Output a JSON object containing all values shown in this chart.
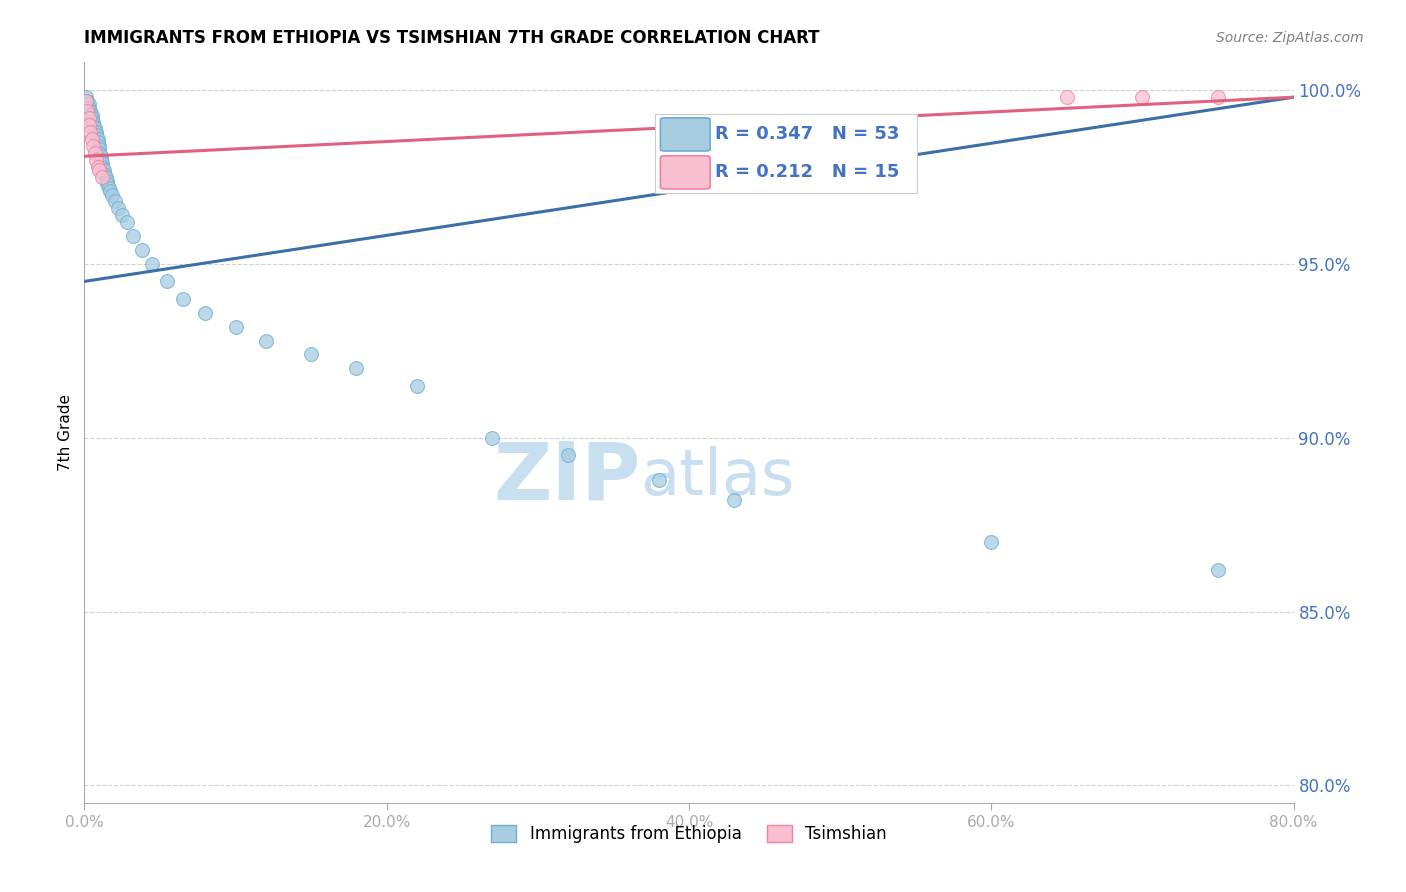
{
  "title": "IMMIGRANTS FROM ETHIOPIA VS TSIMSHIAN 7TH GRADE CORRELATION CHART",
  "ylabel": "7th Grade",
  "source_text": "Source: ZipAtlas.com",
  "xlim": [
    0.0,
    0.8
  ],
  "ylim": [
    0.795,
    1.008
  ],
  "xticks": [
    0.0,
    0.2,
    0.4,
    0.6,
    0.8
  ],
  "xticklabels": [
    "0.0%",
    "20.0%",
    "40.0%",
    "60.0%",
    "80.0%"
  ],
  "yticks": [
    0.8,
    0.85,
    0.9,
    0.95,
    1.0
  ],
  "yticklabels": [
    "80.0%",
    "85.0%",
    "90.0%",
    "95.0%",
    "100.0%"
  ],
  "ethiopia_color": "#a8cce0",
  "ethiopia_edge_color": "#6aaed6",
  "tsimshian_color": "#f9c0d0",
  "tsimshian_edge_color": "#f080a0",
  "ethiopia_line_color": "#3a6faa",
  "tsimshian_line_color": "#e06080",
  "legend_box_ethiopia": "#a8cce0",
  "legend_box_tsimshian": "#f9c0d0",
  "R_ethiopia": 0.347,
  "N_ethiopia": 53,
  "R_tsimshian": 0.212,
  "N_tsimshian": 15,
  "watermark_zip": "ZIP",
  "watermark_atlas": "atlas",
  "watermark_color": "#c8dff0",
  "ethiopia_x": [
    0.001,
    0.002,
    0.002,
    0.003,
    0.003,
    0.004,
    0.004,
    0.005,
    0.005,
    0.006,
    0.006,
    0.007,
    0.007,
    0.008,
    0.008,
    0.009,
    0.009,
    0.01,
    0.01,
    0.01,
    0.011,
    0.011,
    0.012,
    0.012,
    0.013,
    0.013,
    0.014,
    0.015,
    0.015,
    0.016,
    0.017,
    0.018,
    0.02,
    0.022,
    0.025,
    0.028,
    0.032,
    0.038,
    0.045,
    0.055,
    0.065,
    0.08,
    0.1,
    0.12,
    0.15,
    0.18,
    0.22,
    0.27,
    0.32,
    0.38,
    0.43,
    0.6,
    0.75
  ],
  "ethiopia_y": [
    0.998,
    0.997,
    0.996,
    0.996,
    0.995,
    0.994,
    0.993,
    0.993,
    0.992,
    0.991,
    0.99,
    0.989,
    0.988,
    0.988,
    0.987,
    0.986,
    0.985,
    0.984,
    0.983,
    0.982,
    0.981,
    0.98,
    0.979,
    0.978,
    0.977,
    0.976,
    0.975,
    0.974,
    0.973,
    0.972,
    0.971,
    0.97,
    0.968,
    0.966,
    0.964,
    0.962,
    0.958,
    0.954,
    0.95,
    0.945,
    0.94,
    0.936,
    0.932,
    0.928,
    0.924,
    0.92,
    0.915,
    0.9,
    0.895,
    0.888,
    0.882,
    0.87,
    0.862
  ],
  "tsimshian_x": [
    0.001,
    0.002,
    0.003,
    0.003,
    0.004,
    0.005,
    0.006,
    0.007,
    0.008,
    0.009,
    0.01,
    0.012,
    0.65,
    0.7,
    0.75
  ],
  "tsimshian_y": [
    0.997,
    0.994,
    0.992,
    0.99,
    0.988,
    0.986,
    0.984,
    0.982,
    0.98,
    0.978,
    0.977,
    0.975,
    0.998,
    0.998,
    0.998
  ],
  "ethiopia_trend_x": [
    0.0,
    0.8
  ],
  "ethiopia_trend_y": [
    0.945,
    0.998
  ],
  "tsimshian_trend_x": [
    0.0,
    0.8
  ],
  "tsimshian_trend_y": [
    0.981,
    0.998
  ],
  "grid_color": "#cccccc",
  "axis_color": "#aaaaaa",
  "tick_color": "#4472c4",
  "title_fontsize": 12,
  "label_fontsize": 11,
  "marker_size": 100,
  "background_color": "#ffffff"
}
